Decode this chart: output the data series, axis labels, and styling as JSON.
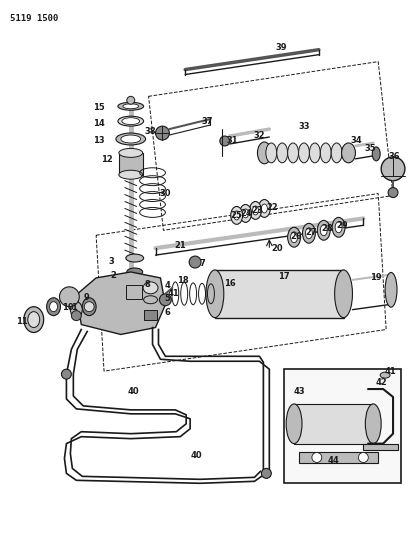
{
  "title": "5119 1500",
  "bg_color": "#ffffff",
  "fg_color": "#1a1a1a",
  "fig_width": 4.08,
  "fig_height": 5.33,
  "dpi": 100
}
